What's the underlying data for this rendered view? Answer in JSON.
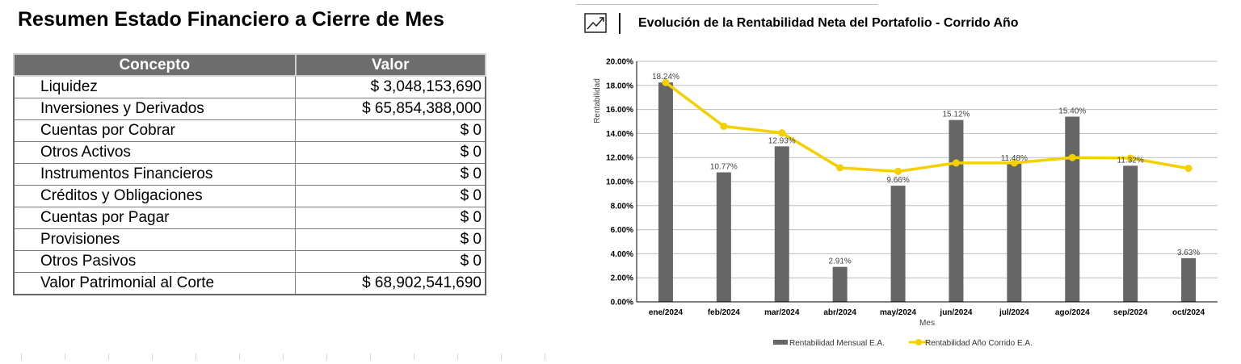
{
  "summary": {
    "title": "Resumen Estado Financiero a Cierre de Mes",
    "headers": [
      "Concepto",
      "Valor"
    ],
    "rows": [
      {
        "concepto": "Liquidez",
        "valor": "$ 3,048,153,690"
      },
      {
        "concepto": "Inversiones y Derivados",
        "valor": "$ 65,854,388,000"
      },
      {
        "concepto": "Cuentas por Cobrar",
        "valor": "$ 0"
      },
      {
        "concepto": "Otros Activos",
        "valor": "$ 0"
      },
      {
        "concepto": "Instrumentos Financieros",
        "valor": "$ 0"
      },
      {
        "concepto": "Créditos y Obligaciones",
        "valor": "$ 0"
      },
      {
        "concepto": "Cuentas por Pagar",
        "valor": "$ 0"
      },
      {
        "concepto": "Provisiones",
        "valor": "$ 0"
      },
      {
        "concepto": "Otros Pasivos",
        "valor": "$ 0"
      },
      {
        "concepto": "Valor Patrimonial al Corte",
        "valor": "$ 68,902,541,690"
      }
    ]
  },
  "chart_data": {
    "type": "bar",
    "title": "Evolución de la Rentabilidad Neta del Portafolio - Corrido Año",
    "icon": "trend-chart-icon",
    "xlabel": "Mes",
    "ylabel": "Rentabilidad",
    "categories": [
      "ene/2024",
      "feb/2024",
      "mar/2024",
      "abr/2024",
      "may/2024",
      "jun/2024",
      "jul/2024",
      "ago/2024",
      "sep/2024",
      "oct/2024"
    ],
    "ylim": [
      0,
      20
    ],
    "yticks": [
      "0.00%",
      "2.00%",
      "4.00%",
      "6.00%",
      "8.00%",
      "10.00%",
      "12.00%",
      "14.00%",
      "16.00%",
      "18.00%",
      "20.00%"
    ],
    "grid": true,
    "legend_position": "bottom",
    "series": [
      {
        "name": "Rentabilidad Mensual E.A.",
        "kind": "bar",
        "color": "#666666",
        "values": [
          18.24,
          10.77,
          12.93,
          2.91,
          9.66,
          15.12,
          11.48,
          15.4,
          11.32,
          3.63
        ],
        "labels": [
          "18.24%",
          "10.77%",
          "12.93%",
          "2.91%",
          "9.66%",
          "15.12%",
          "11.48%",
          "15.40%",
          "11.32%",
          "3.63%"
        ]
      },
      {
        "name": "Rentabilidad Año Corrido E.A.",
        "kind": "line",
        "color": "#f5d000",
        "values": [
          18.24,
          14.6,
          14.05,
          11.15,
          10.85,
          11.55,
          11.55,
          12.0,
          11.95,
          11.1
        ]
      }
    ]
  }
}
